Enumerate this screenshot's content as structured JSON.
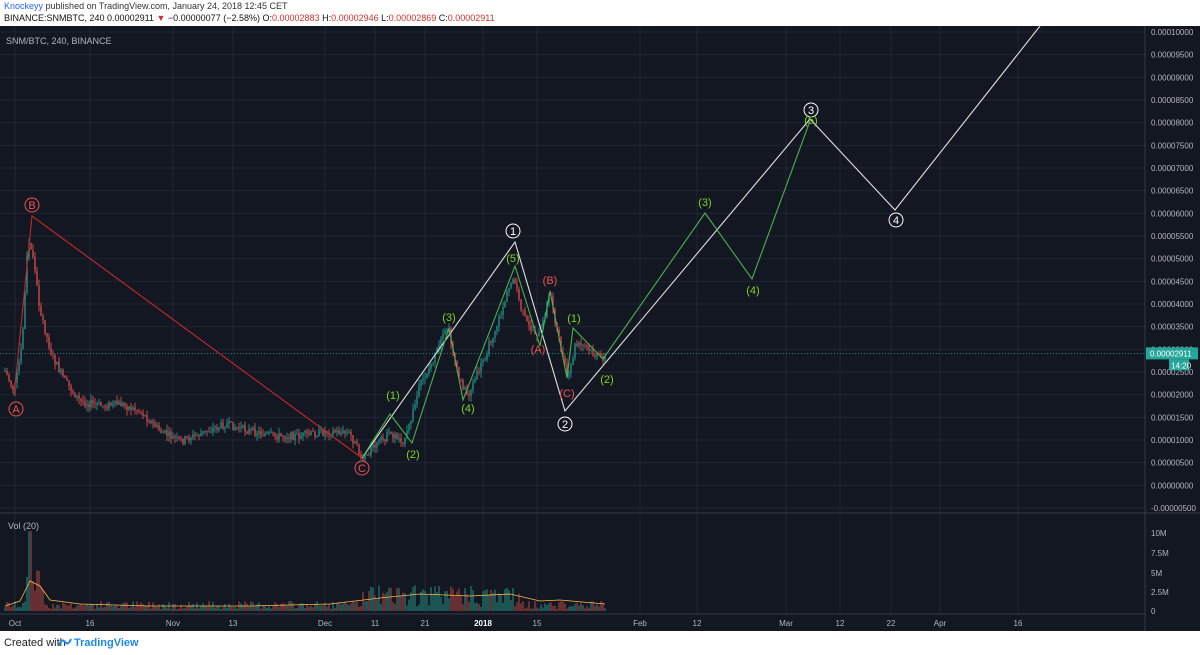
{
  "header": {
    "author": "Knockeyy",
    "published_text": "published on TradingView.com, January 24, 2018 12:45 CET",
    "symbol_line": {
      "symbol": "BINANCE:SNMBTC, 240",
      "last": "0.00002911",
      "change": "−0.00000077 (−2.58%)",
      "o_label": "O:",
      "o_value": "0.00002883",
      "h_label": "H:",
      "h_value": "0.00002946",
      "l_label": "L:",
      "l_value": "0.00002869",
      "c_label": "C:",
      "c_value": "0.00002911"
    }
  },
  "chart": {
    "legend": "SNM/BTC, 240, BINANCE",
    "price_ticks": [
      "0.00010000",
      "0.00009500",
      "0.00009000",
      "0.00008500",
      "0.00008000",
      "0.00007500",
      "0.00007000",
      "0.00006500",
      "0.00006000",
      "0.00005500",
      "0.00005000",
      "0.00004500",
      "0.00004000",
      "0.00003500",
      "0.00003000",
      "0.00002500",
      "0.00002000",
      "0.00001500",
      "0.00001000",
      "0.00000500",
      "0.00000000",
      "-0.00000500"
    ],
    "current_price_label": "0.00002911",
    "countdown_label": "14:20",
    "volume_legend": "Vol (20)",
    "volume_ticks": [
      "10M",
      "7.5M",
      "5M",
      "2.5M",
      "0"
    ],
    "time_ticks": [
      "Oct",
      "16",
      "Nov",
      "13",
      "Dec",
      "11",
      "21",
      "2018",
      "15",
      "Feb",
      "12",
      "Mar",
      "12",
      "22",
      "Apr",
      "16"
    ],
    "wave_labels": {
      "red": [
        "A",
        "B",
        "C",
        "A",
        "B",
        "C"
      ],
      "white": [
        "1",
        "2",
        "3",
        "4"
      ],
      "green": [
        "1",
        "2",
        "3",
        "4",
        "5",
        "1",
        "2",
        "3",
        "4",
        "5"
      ]
    },
    "colors": {
      "background": "#131722",
      "up": "#26a69a",
      "down": "#ef5350",
      "white_wave": "#e0e0e0",
      "green_wave": "#4caf50",
      "green_label": "#7ed321",
      "red_wave": "#c62828",
      "grid": "#1f2533",
      "axis_text": "#b2b5be"
    }
  },
  "footer": {
    "created_with": "Created with",
    "brand": "TradingView"
  }
}
